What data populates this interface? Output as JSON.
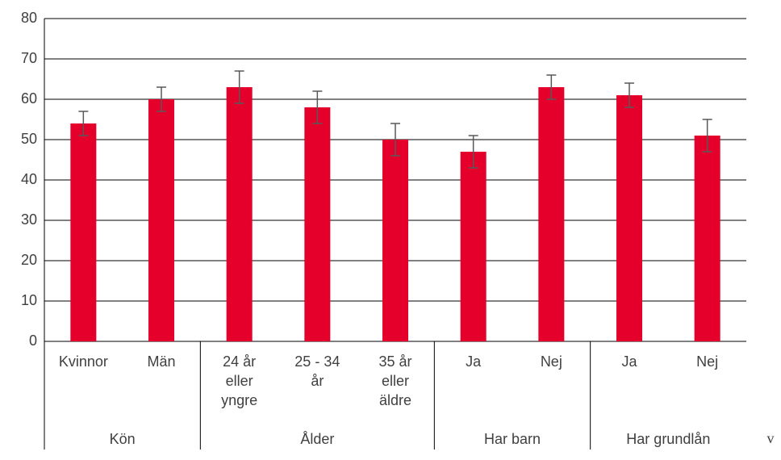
{
  "chart_data": {
    "type": "bar",
    "color": "#e4002b",
    "error_color": "#595959",
    "ylim": [
      0,
      80
    ],
    "yticks": [
      0,
      10,
      20,
      30,
      40,
      50,
      60,
      70,
      80
    ],
    "grid": true,
    "groups": [
      {
        "name": "Kön",
        "categories": [
          "Kvinnor",
          "Män"
        ],
        "values": [
          54,
          60
        ],
        "errors": [
          3,
          3
        ]
      },
      {
        "name": "Ålder",
        "categories": [
          "24 år\neller\nyngre",
          "25 - 34\når",
          "35 år\neller\näldre"
        ],
        "values": [
          63,
          58,
          50
        ],
        "errors": [
          4,
          4,
          4
        ]
      },
      {
        "name": "Har barn",
        "categories": [
          "Ja",
          "Nej"
        ],
        "values": [
          47,
          63
        ],
        "errors": [
          4,
          3
        ]
      },
      {
        "name": "Har grundlån",
        "categories": [
          "Ja",
          "Nej"
        ],
        "values": [
          61,
          51
        ],
        "errors": [
          3,
          4
        ]
      }
    ],
    "annotation": "v"
  }
}
